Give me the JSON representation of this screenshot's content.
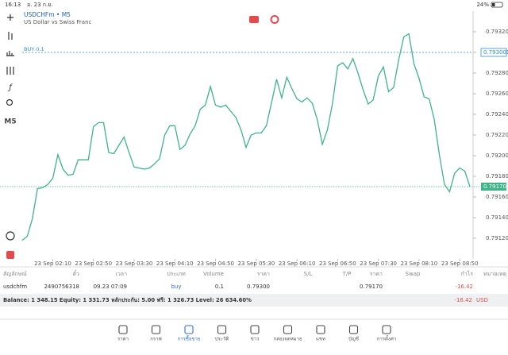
{
  "status_bar": {
    "time": "16:13",
    "date": "อ. 23 ก.ย.",
    "battery": "24%"
  },
  "chart_header": {
    "symbol": "USDCHFm • M5",
    "description": "US Dollar vs Swiss Franc"
  },
  "timeframe": "M5",
  "chart_data": {
    "type": "line",
    "color": "#3fb389",
    "values": [
      0.79118,
      0.79122,
      0.79139,
      0.79168,
      0.79169,
      0.79172,
      0.79178,
      0.79201,
      0.79187,
      0.79181,
      0.79182,
      0.79196,
      0.79196,
      0.79196,
      0.79228,
      0.79232,
      0.79232,
      0.79203,
      0.79202,
      0.7921,
      0.79218,
      0.79203,
      0.79189,
      0.79188,
      0.79187,
      0.79188,
      0.79192,
      0.79197,
      0.7922,
      0.79229,
      0.79229,
      0.79206,
      0.7921,
      0.79221,
      0.79229,
      0.79245,
      0.79249,
      0.79267,
      0.79249,
      0.79247,
      0.79249,
      0.79243,
      0.79237,
      0.79225,
      0.79208,
      0.7922,
      0.79222,
      0.79222,
      0.79229,
      0.79251,
      0.79274,
      0.79256,
      0.79276,
      0.79265,
      0.79255,
      0.79252,
      0.79256,
      0.79251,
      0.79235,
      0.79211,
      0.79225,
      0.79251,
      0.79287,
      0.7929,
      0.79284,
      0.79294,
      0.7928,
      0.79264,
      0.7925,
      0.79254,
      0.79277,
      0.79286,
      0.79262,
      0.79266,
      0.79293,
      0.79315,
      0.79318,
      0.79289,
      0.79275,
      0.79257,
      0.79255,
      0.79235,
      0.79201,
      0.79172,
      0.79165,
      0.79183,
      0.79188,
      0.79185,
      0.7917
    ],
    "xlim": [
      0,
      88
    ],
    "xticks": [
      {
        "value": 6,
        "label": "23 Sep 02:10"
      },
      {
        "value": 14,
        "label": "23 Sep 02:50"
      },
      {
        "value": 22,
        "label": "23 Sep 03:30"
      },
      {
        "value": 30,
        "label": "23 Sep 04:10"
      },
      {
        "value": 38,
        "label": "23 Sep 04:50"
      },
      {
        "value": 46,
        "label": "23 Sep 05:30"
      },
      {
        "value": 54,
        "label": "23 Sep 06:10"
      },
      {
        "value": 62,
        "label": "23 Sep 06:50"
      },
      {
        "value": 70,
        "label": "23 Sep 07:30"
      },
      {
        "value": 78,
        "label": "23 Sep 08:10"
      },
      {
        "value": 86,
        "label": "23 Sep 08:50"
      }
    ],
    "ylim": [
      0.791,
      0.7934
    ],
    "yticks": [
      {
        "value": 0.7912,
        "label": "0.79120"
      },
      {
        "value": 0.7914,
        "label": "0.79140"
      },
      {
        "value": 0.7916,
        "label": "0.79160"
      },
      {
        "value": 0.7918,
        "label": "0.79180"
      },
      {
        "value": 0.792,
        "label": "0.79200"
      },
      {
        "value": 0.7922,
        "label": "0.79220"
      },
      {
        "value": 0.7924,
        "label": "0.79240"
      },
      {
        "value": 0.7926,
        "label": "0.79260"
      },
      {
        "value": 0.7928,
        "label": "0.79280"
      },
      {
        "value": 0.793,
        "label": "0.79300"
      },
      {
        "value": 0.7932,
        "label": "0.79320"
      }
    ],
    "buy_line": {
      "value": 0.793,
      "label": "0.79300",
      "text": "BUY 0.1",
      "color": "#2f8fd8"
    },
    "price_line": {
      "value": 0.7917,
      "label": "0.79170",
      "color": "#3fb389"
    }
  },
  "positions": {
    "headers": [
      "สัญลักษณ์",
      "ตั๋ว",
      "เวลา",
      "ประเภท",
      "Volume",
      "ราคา",
      "S/L",
      "T/P",
      "ราคา",
      "Swap",
      "กำไร",
      "หมายเหตุ"
    ],
    "row": {
      "symbol": "usdchfm",
      "ticket": "2490756318",
      "time": "09.23 07:09",
      "type": "buy",
      "volume": "0.1",
      "open_price": "0.79300",
      "price": "0.79170",
      "profit": "-16.42"
    }
  },
  "balance": {
    "text": "Balance: 1 348.15 Equity: 1 331.73 หลักประกัน: 5.00 ฟรี: 1 326.73 Level: 26 634.60%",
    "profit": "-16.42",
    "currency": "USD"
  },
  "nav": [
    "ราคา",
    "กราฟ",
    "การซื้อขาย",
    "ประวัติ",
    "ข่าว",
    "กล่องจดหมาย",
    "แชท",
    "บัญชี",
    "การตั้งค่า"
  ]
}
